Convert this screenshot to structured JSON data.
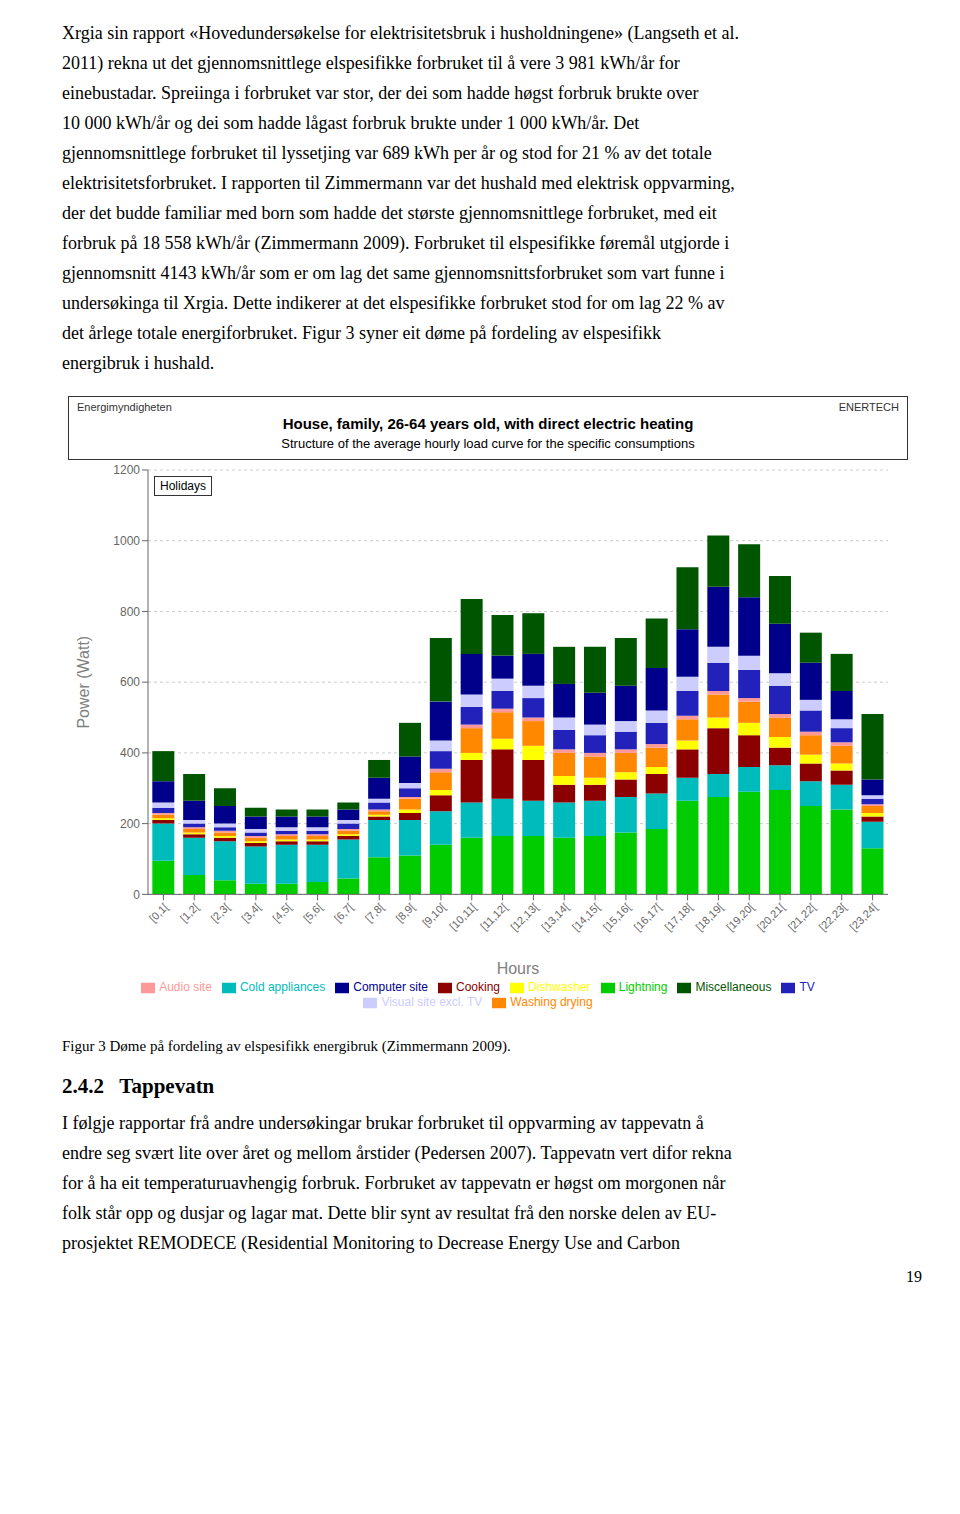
{
  "text_above": [
    "Xrgia sin rapport «Hovedundersøkelse for elektrisitetsbruk i husholdningene» (Langseth et al.",
    "2011) rekna ut det gjennomsnittlege elspesifikke forbruket til å vere 3 981 kWh/år for",
    "einebustadar. Spreiinga i forbruket var stor, der dei som hadde høgst forbruk brukte over",
    "10 000 kWh/år og dei som hadde lågast forbruk brukte under 1 000 kWh/år. Det",
    "gjennomsnittlege forbruket til lyssetjing var 689 kWh per år og stod for 21 % av det totale",
    "elektrisitetsforbruket. I rapporten til Zimmermann var det hushald med elektrisk oppvarming,",
    "der det budde familiar med born som hadde det største gjennomsnittlege forbruket, med eit",
    "forbruk på 18 558 kWh/år (Zimmermann 2009). Forbruket til elspesifikke føremål utgjorde i",
    "gjennomsnitt 4143 kWh/år som er om lag det same gjennomsnittsforbruket som vart funne i",
    "undersøkinga til Xrgia. Dette indikerer at det elspesifikke forbruket stod for om lag 22 % av",
    "det årlege totale energiforbruket. Figur 3 syner eit døme på fordeling av elspesifikk",
    "energibruk i hushald."
  ],
  "caption": "Figur 3 Døme på fordeling av elspesifikk energibruk (Zimmermann 2009).",
  "heading": "2.4.2   Tappevatn",
  "text_below": [
    "I følgje rapportar frå andre undersøkingar brukar forbruket til oppvarming av tappevatn å",
    "endre seg svært lite over året og mellom årstider (Pedersen 2007). Tappevatn vert difor rekna",
    "for å ha eit temperaturuavhengig forbruk. Forbruket av tappevatn er høgst om morgonen når",
    "folk står opp og dusjar og lagar mat. Dette blir synt av resultat frå den norske delen av EU-",
    "prosjektet REMODECE (Residential Monitoring to Decrease Energy Use and Carbon"
  ],
  "page_number": "19",
  "chart_data": {
    "type": "bar",
    "title": "House, family, 26-64 years old, with direct electric heating",
    "subtitle": "Structure of the average hourly load curve for the specific consumptions",
    "header_left": "Energimyndigheten",
    "header_right": "ENERTECH",
    "annotation": "Holidays",
    "x_label": "Hours",
    "y_label": "Power (Watt)",
    "stacked": true,
    "grid": true,
    "legend": "bottom",
    "ylim": [
      0,
      1200
    ],
    "yticks": [
      0,
      200,
      400,
      600,
      800,
      1000,
      1200
    ],
    "categories": [
      "[0,1[",
      "[1,2[",
      "[2,3[",
      "[3,4[",
      "[4,5[",
      "[5,6[",
      "[6,7[",
      "[7,8[",
      "[8,9[",
      "[9,10[",
      "[10,11[",
      "[11,12[",
      "[12,13[",
      "[13,14[",
      "[14,15[",
      "[15,16[",
      "[16,17[",
      "[17,18[",
      "[18,19[",
      "[19,20[",
      "[20,21[",
      "[21,22[",
      "[22,23[",
      "[23,24["
    ],
    "series": [
      {
        "name": "Lightning",
        "color": "#00CC00",
        "values": [
          95,
          55,
          40,
          30,
          30,
          35,
          45,
          105,
          110,
          140,
          160,
          165,
          165,
          160,
          165,
          175,
          185,
          265,
          275,
          290,
          295,
          250,
          240,
          130
        ]
      },
      {
        "name": "Cold appliances",
        "color": "#00BBBB",
        "values": [
          105,
          105,
          110,
          105,
          110,
          105,
          110,
          105,
          100,
          95,
          100,
          105,
          100,
          100,
          100,
          100,
          100,
          65,
          65,
          70,
          70,
          70,
          70,
          75
        ]
      },
      {
        "name": "Cooking",
        "color": "#8B0000",
        "values": [
          10,
          10,
          10,
          10,
          10,
          10,
          10,
          10,
          20,
          45,
          120,
          140,
          115,
          50,
          45,
          50,
          55,
          80,
          130,
          90,
          50,
          50,
          40,
          15
        ]
      },
      {
        "name": "Dishwasher",
        "color": "#FFFF00",
        "values": [
          5,
          5,
          5,
          5,
          5,
          5,
          5,
          5,
          10,
          15,
          20,
          30,
          40,
          25,
          20,
          20,
          20,
          25,
          30,
          35,
          30,
          25,
          20,
          10
        ]
      },
      {
        "name": "Washing drying",
        "color": "#FF8800",
        "values": [
          10,
          10,
          10,
          10,
          10,
          10,
          10,
          10,
          30,
          50,
          70,
          75,
          70,
          65,
          60,
          55,
          55,
          60,
          65,
          60,
          55,
          55,
          50,
          20
        ]
      },
      {
        "name": "Audio site",
        "color": "#FF9999",
        "values": [
          5,
          5,
          5,
          5,
          5,
          5,
          5,
          5,
          5,
          10,
          10,
          10,
          10,
          10,
          10,
          10,
          10,
          10,
          10,
          10,
          10,
          10,
          10,
          5
        ]
      },
      {
        "name": "TV",
        "color": "#2222BB",
        "values": [
          15,
          10,
          10,
          10,
          10,
          10,
          15,
          20,
          25,
          50,
          50,
          50,
          55,
          55,
          50,
          50,
          60,
          70,
          80,
          80,
          80,
          60,
          40,
          15
        ]
      },
      {
        "name": "Visual site excl. TV",
        "color": "#CCCCFF",
        "values": [
          15,
          10,
          10,
          10,
          10,
          10,
          10,
          10,
          15,
          30,
          35,
          35,
          35,
          35,
          30,
          30,
          35,
          40,
          45,
          40,
          35,
          30,
          25,
          10
        ]
      },
      {
        "name": "Computer site",
        "color": "#00008B",
        "values": [
          60,
          55,
          50,
          35,
          30,
          30,
          30,
          60,
          75,
          110,
          115,
          65,
          90,
          95,
          90,
          100,
          120,
          135,
          170,
          165,
          140,
          105,
          80,
          45
        ]
      },
      {
        "name": "Miscellaneous",
        "color": "#005500",
        "values": [
          85,
          75,
          50,
          25,
          20,
          20,
          20,
          50,
          95,
          180,
          155,
          115,
          115,
          105,
          130,
          135,
          140,
          175,
          145,
          150,
          135,
          85,
          105,
          185
        ]
      }
    ]
  }
}
